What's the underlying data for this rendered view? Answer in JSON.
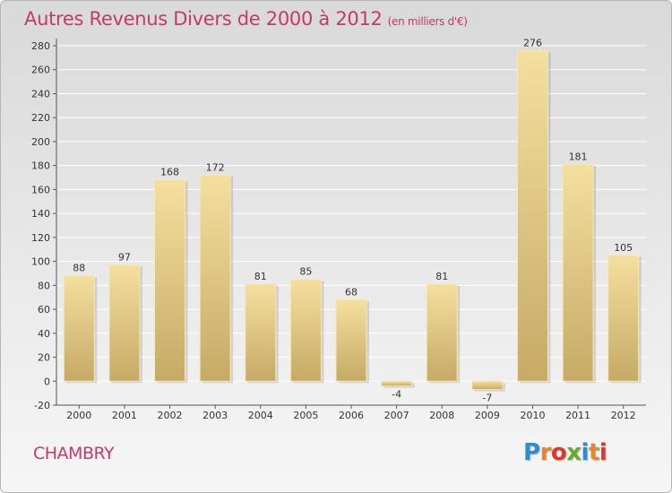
{
  "header": {
    "title": "Autres Revenus Divers de 2000 à 2012",
    "unit": "(en milliers d'€)"
  },
  "commune": "CHAMBRY",
  "logo": {
    "text": "Proxiti",
    "letter_colors": [
      "#2f8ccf",
      "#e4862a",
      "#d83b2b",
      "#6aaa2e",
      "#2f8ccf",
      "#e4862a",
      "#d83b2b"
    ]
  },
  "colors": {
    "title": "#c8386a",
    "bar_light": "#f5df9f",
    "bar_dark": "#c6aa66",
    "grid": "#ffffff",
    "axis": "#555555"
  },
  "chart_data": {
    "type": "bar",
    "categories": [
      "2000",
      "2001",
      "2002",
      "2003",
      "2004",
      "2005",
      "2006",
      "2007",
      "2008",
      "2009",
      "2010",
      "2011",
      "2012"
    ],
    "values": [
      88,
      97,
      168,
      172,
      81,
      85,
      68,
      -4,
      81,
      -7,
      276,
      181,
      105
    ],
    "data_labels": [
      "88",
      "97",
      "168",
      "172",
      "81",
      "85",
      "68",
      "-4",
      "81",
      "-7",
      "276",
      "181",
      "105"
    ],
    "ylim": [
      -20,
      280
    ],
    "y_ticks": [
      -20,
      0,
      20,
      40,
      60,
      80,
      100,
      120,
      140,
      160,
      180,
      200,
      220,
      240,
      260,
      280
    ],
    "grid": true,
    "xlabel": "",
    "ylabel": ""
  }
}
